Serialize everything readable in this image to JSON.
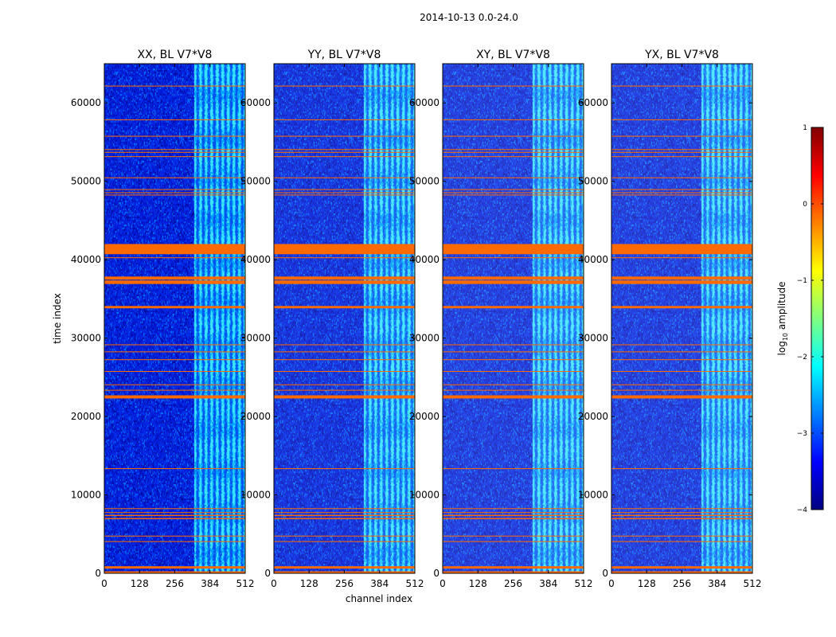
{
  "chart_data": {
    "type": "heatmap",
    "suptitle": "2014-10-13 0.0-24.0",
    "xlabel": "channel index",
    "ylabel": "time index",
    "x_range": [
      0,
      512
    ],
    "y_range": [
      0,
      65000
    ],
    "x_ticks": [
      0,
      128,
      256,
      384,
      512
    ],
    "y_ticks": [
      0,
      10000,
      20000,
      30000,
      40000,
      50000,
      60000
    ],
    "panels": [
      {
        "title": "XX, BL V7*V8",
        "brightness": 1.0
      },
      {
        "title": "YY, BL V7*V8",
        "brightness": 0.9
      },
      {
        "title": "XY, BL V7*V8",
        "brightness": 0.85
      },
      {
        "title": "YX, BL V7*V8",
        "brightness": 0.85
      }
    ],
    "colorbar": {
      "label": "log10 amplitude",
      "label_main": "log",
      "label_sub": "10",
      "label_rest": " amplitude",
      "range": [
        -4,
        1
      ],
      "ticks": [
        1,
        0,
        -1,
        -2,
        -3,
        -4
      ],
      "tick_labels": [
        "1",
        "0",
        "−1",
        "−2",
        "−3",
        "−4"
      ],
      "colormap": [
        "#000080",
        "#0000ff",
        "#0080ff",
        "#00ffff",
        "#80ff80",
        "#ffff00",
        "#ff8000",
        "#ff0000",
        "#800000"
      ]
    },
    "signal_channel_range": [
      325,
      512
    ],
    "flagged_rows": [
      {
        "t0": 0,
        "t1": 250
      },
      {
        "t0": 600,
        "t1": 900
      },
      {
        "t0": 4000,
        "t1": 4100
      },
      {
        "t0": 4700,
        "t1": 4800
      },
      {
        "t0": 6900,
        "t1": 7050
      },
      {
        "t0": 7300,
        "t1": 7450
      },
      {
        "t0": 7700,
        "t1": 7800
      },
      {
        "t0": 8200,
        "t1": 8300
      },
      {
        "t0": 13300,
        "t1": 13400
      },
      {
        "t0": 22300,
        "t1": 22700
      },
      {
        "t0": 23300,
        "t1": 23400
      },
      {
        "t0": 24000,
        "t1": 24100
      },
      {
        "t0": 25700,
        "t1": 25800
      },
      {
        "t0": 27200,
        "t1": 27300
      },
      {
        "t0": 28200,
        "t1": 28300
      },
      {
        "t0": 29100,
        "t1": 29200
      },
      {
        "t0": 33800,
        "t1": 34100
      },
      {
        "t0": 36900,
        "t1": 37350
      },
      {
        "t0": 37450,
        "t1": 37850
      },
      {
        "t0": 40200,
        "t1": 40300
      },
      {
        "t0": 40700,
        "t1": 42000
      },
      {
        "t0": 48200,
        "t1": 48300
      },
      {
        "t0": 48500,
        "t1": 48600
      },
      {
        "t0": 48900,
        "t1": 49000
      },
      {
        "t0": 50400,
        "t1": 50500
      },
      {
        "t0": 53100,
        "t1": 53200
      },
      {
        "t0": 53650,
        "t1": 53750
      },
      {
        "t0": 54000,
        "t1": 54100
      },
      {
        "t0": 55700,
        "t1": 55800
      },
      {
        "t0": 57800,
        "t1": 57900
      },
      {
        "t0": 62100,
        "t1": 62200
      }
    ],
    "flag_color": "#ff6a00"
  }
}
